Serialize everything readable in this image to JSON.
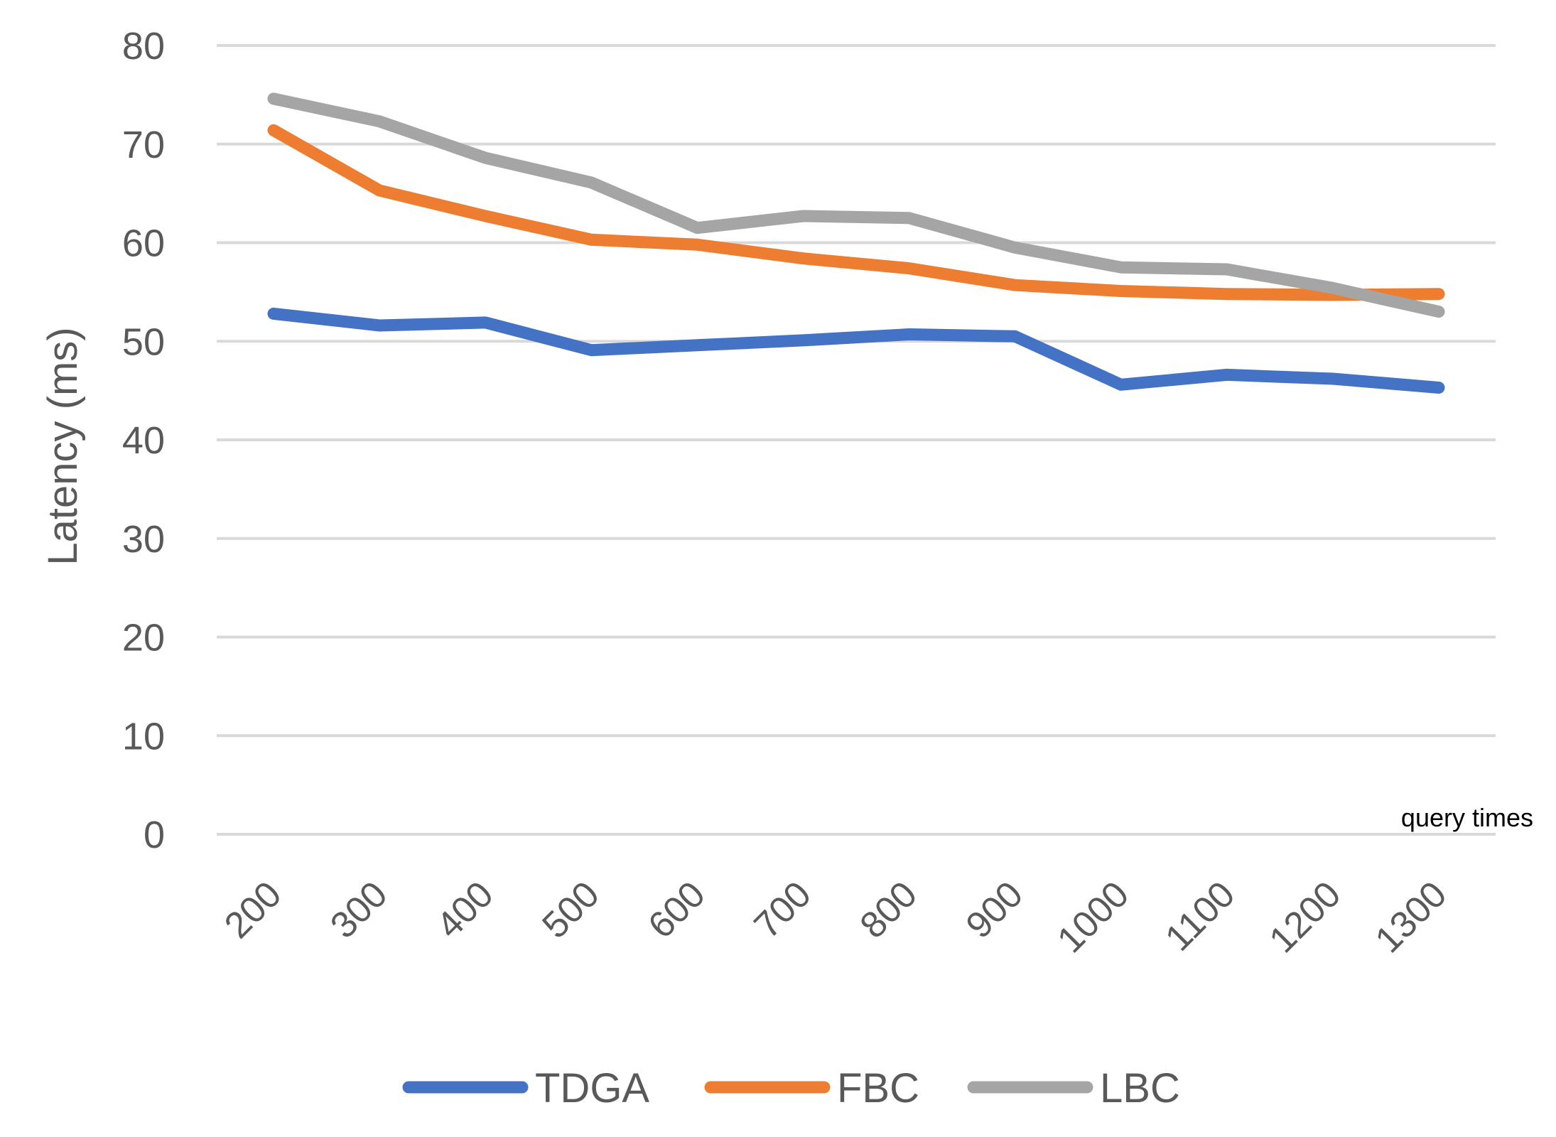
{
  "chart_data": {
    "type": "line",
    "title": "",
    "xlabel": "query times",
    "ylabel": "Latency (ms)",
    "ylim": [
      0,
      80
    ],
    "yticks": [
      0,
      10,
      20,
      30,
      40,
      50,
      60,
      70,
      80
    ],
    "grid": true,
    "legend_position": "bottom",
    "categories": [
      "200",
      "300",
      "400",
      "500",
      "600",
      "700",
      "800",
      "900",
      "1000",
      "1100",
      "1200",
      "1300"
    ],
    "series": [
      {
        "name": "TDGA",
        "color": "#4472c4",
        "values": [
          52.8,
          51.6,
          51.9,
          49.1,
          49.6,
          50.1,
          50.7,
          50.5,
          45.6,
          46.6,
          46.2,
          45.3
        ]
      },
      {
        "name": "FBC",
        "color": "#ed7d31",
        "values": [
          71.4,
          65.3,
          62.7,
          60.3,
          59.8,
          58.4,
          57.4,
          55.7,
          55.1,
          54.8,
          54.7,
          54.8
        ]
      },
      {
        "name": "LBC",
        "color": "#a5a5a5",
        "values": [
          74.6,
          72.3,
          68.6,
          66.1,
          61.5,
          62.7,
          62.5,
          59.5,
          57.5,
          57.3,
          55.4,
          53.0
        ]
      }
    ]
  }
}
